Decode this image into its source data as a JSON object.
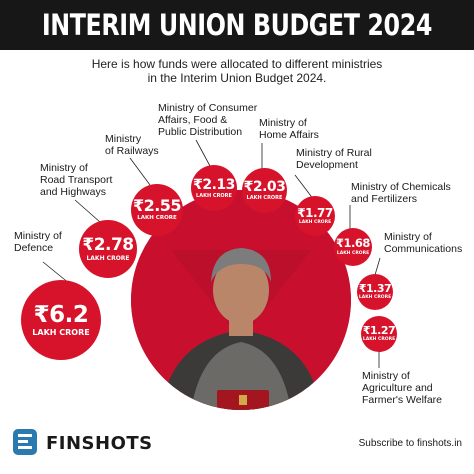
{
  "header": {
    "title": "INTERIM UNION BUDGET 2024"
  },
  "intro": {
    "line1": "Here is how funds were allocated to different ministries",
    "line2": "in the Interim Union Budget 2024."
  },
  "allocations": [
    {
      "amount": "₹6.2",
      "unit": "LAKH CRORE",
      "label": [
        "Ministry of",
        "Defence"
      ]
    },
    {
      "amount": "₹2.78",
      "unit": "LAKH CRORE",
      "label": [
        "Ministry of",
        "Road Transport",
        "and Highways"
      ]
    },
    {
      "amount": "₹2.55",
      "unit": "LAKH CRORE",
      "label": [
        "Ministry",
        "of Railways"
      ]
    },
    {
      "amount": "₹2.13",
      "unit": "LAKH CRORE",
      "label": [
        "Ministry of Consumer",
        "Affairs, Food &",
        "Public Distribution"
      ]
    },
    {
      "amount": "₹2.03",
      "unit": "LAKH CRORE",
      "label": [
        "Ministry of",
        "Home Affairs"
      ]
    },
    {
      "amount": "₹1.77",
      "unit": "LAKH CRORE",
      "label": [
        "Ministry of Rural",
        "Development"
      ]
    },
    {
      "amount": "₹1.68",
      "unit": "LAKH CRORE",
      "label": [
        "Ministry of Chemicals",
        "and Fertilizers"
      ]
    },
    {
      "amount": "₹1.37",
      "unit": "LAKH CRORE",
      "label": [
        "Ministry of",
        "Communications"
      ]
    },
    {
      "amount": "₹1.27",
      "unit": "LAKH CRORE",
      "label": [
        "Ministry of",
        "Agriculture and",
        "Farmer's Welfare"
      ]
    }
  ],
  "footer": {
    "brand": "FINSHOTS",
    "subscribe": "Subscribe to finshots.in"
  },
  "colors": {
    "accent": "#d7132b",
    "header_bg": "#171717"
  }
}
